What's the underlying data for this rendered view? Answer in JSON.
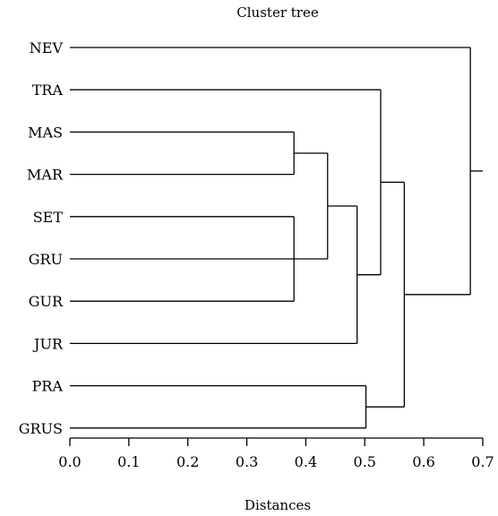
{
  "chart_data": {
    "type": "dendrogram",
    "title": "Cluster tree",
    "xlabel": "Distances",
    "xlim": [
      0.0,
      0.7
    ],
    "xticks": [
      "0.0",
      "0.1",
      "0.2",
      "0.3",
      "0.4",
      "0.5",
      "0.6",
      "0.7"
    ],
    "grid": false,
    "leaves": [
      "NEV",
      "TRA",
      "MAS",
      "MAR",
      "SET",
      "GRU",
      "GUR",
      "JUR",
      "PRA",
      "GRUS"
    ],
    "merges": [
      {
        "id": "c1",
        "children": [
          "SET",
          "GRU",
          "GUR"
        ],
        "distance": 0.38
      },
      {
        "id": "c2",
        "children": [
          "MAS",
          "MAR"
        ],
        "distance": 0.38
      },
      {
        "id": "c3",
        "children": [
          "c2",
          "c1"
        ],
        "distance": 0.437
      },
      {
        "id": "c4",
        "children": [
          "c3",
          "JUR"
        ],
        "distance": 0.487
      },
      {
        "id": "c5",
        "children": [
          "TRA",
          "c4"
        ],
        "distance": 0.527
      },
      {
        "id": "c6",
        "children": [
          "PRA",
          "GRUS"
        ],
        "distance": 0.502
      },
      {
        "id": "c7",
        "children": [
          "c5",
          "c6"
        ],
        "distance": 0.567
      },
      {
        "id": "c8",
        "children": [
          "NEV",
          "c7"
        ],
        "distance": 0.679
      }
    ],
    "root_extends_to": 0.7
  }
}
